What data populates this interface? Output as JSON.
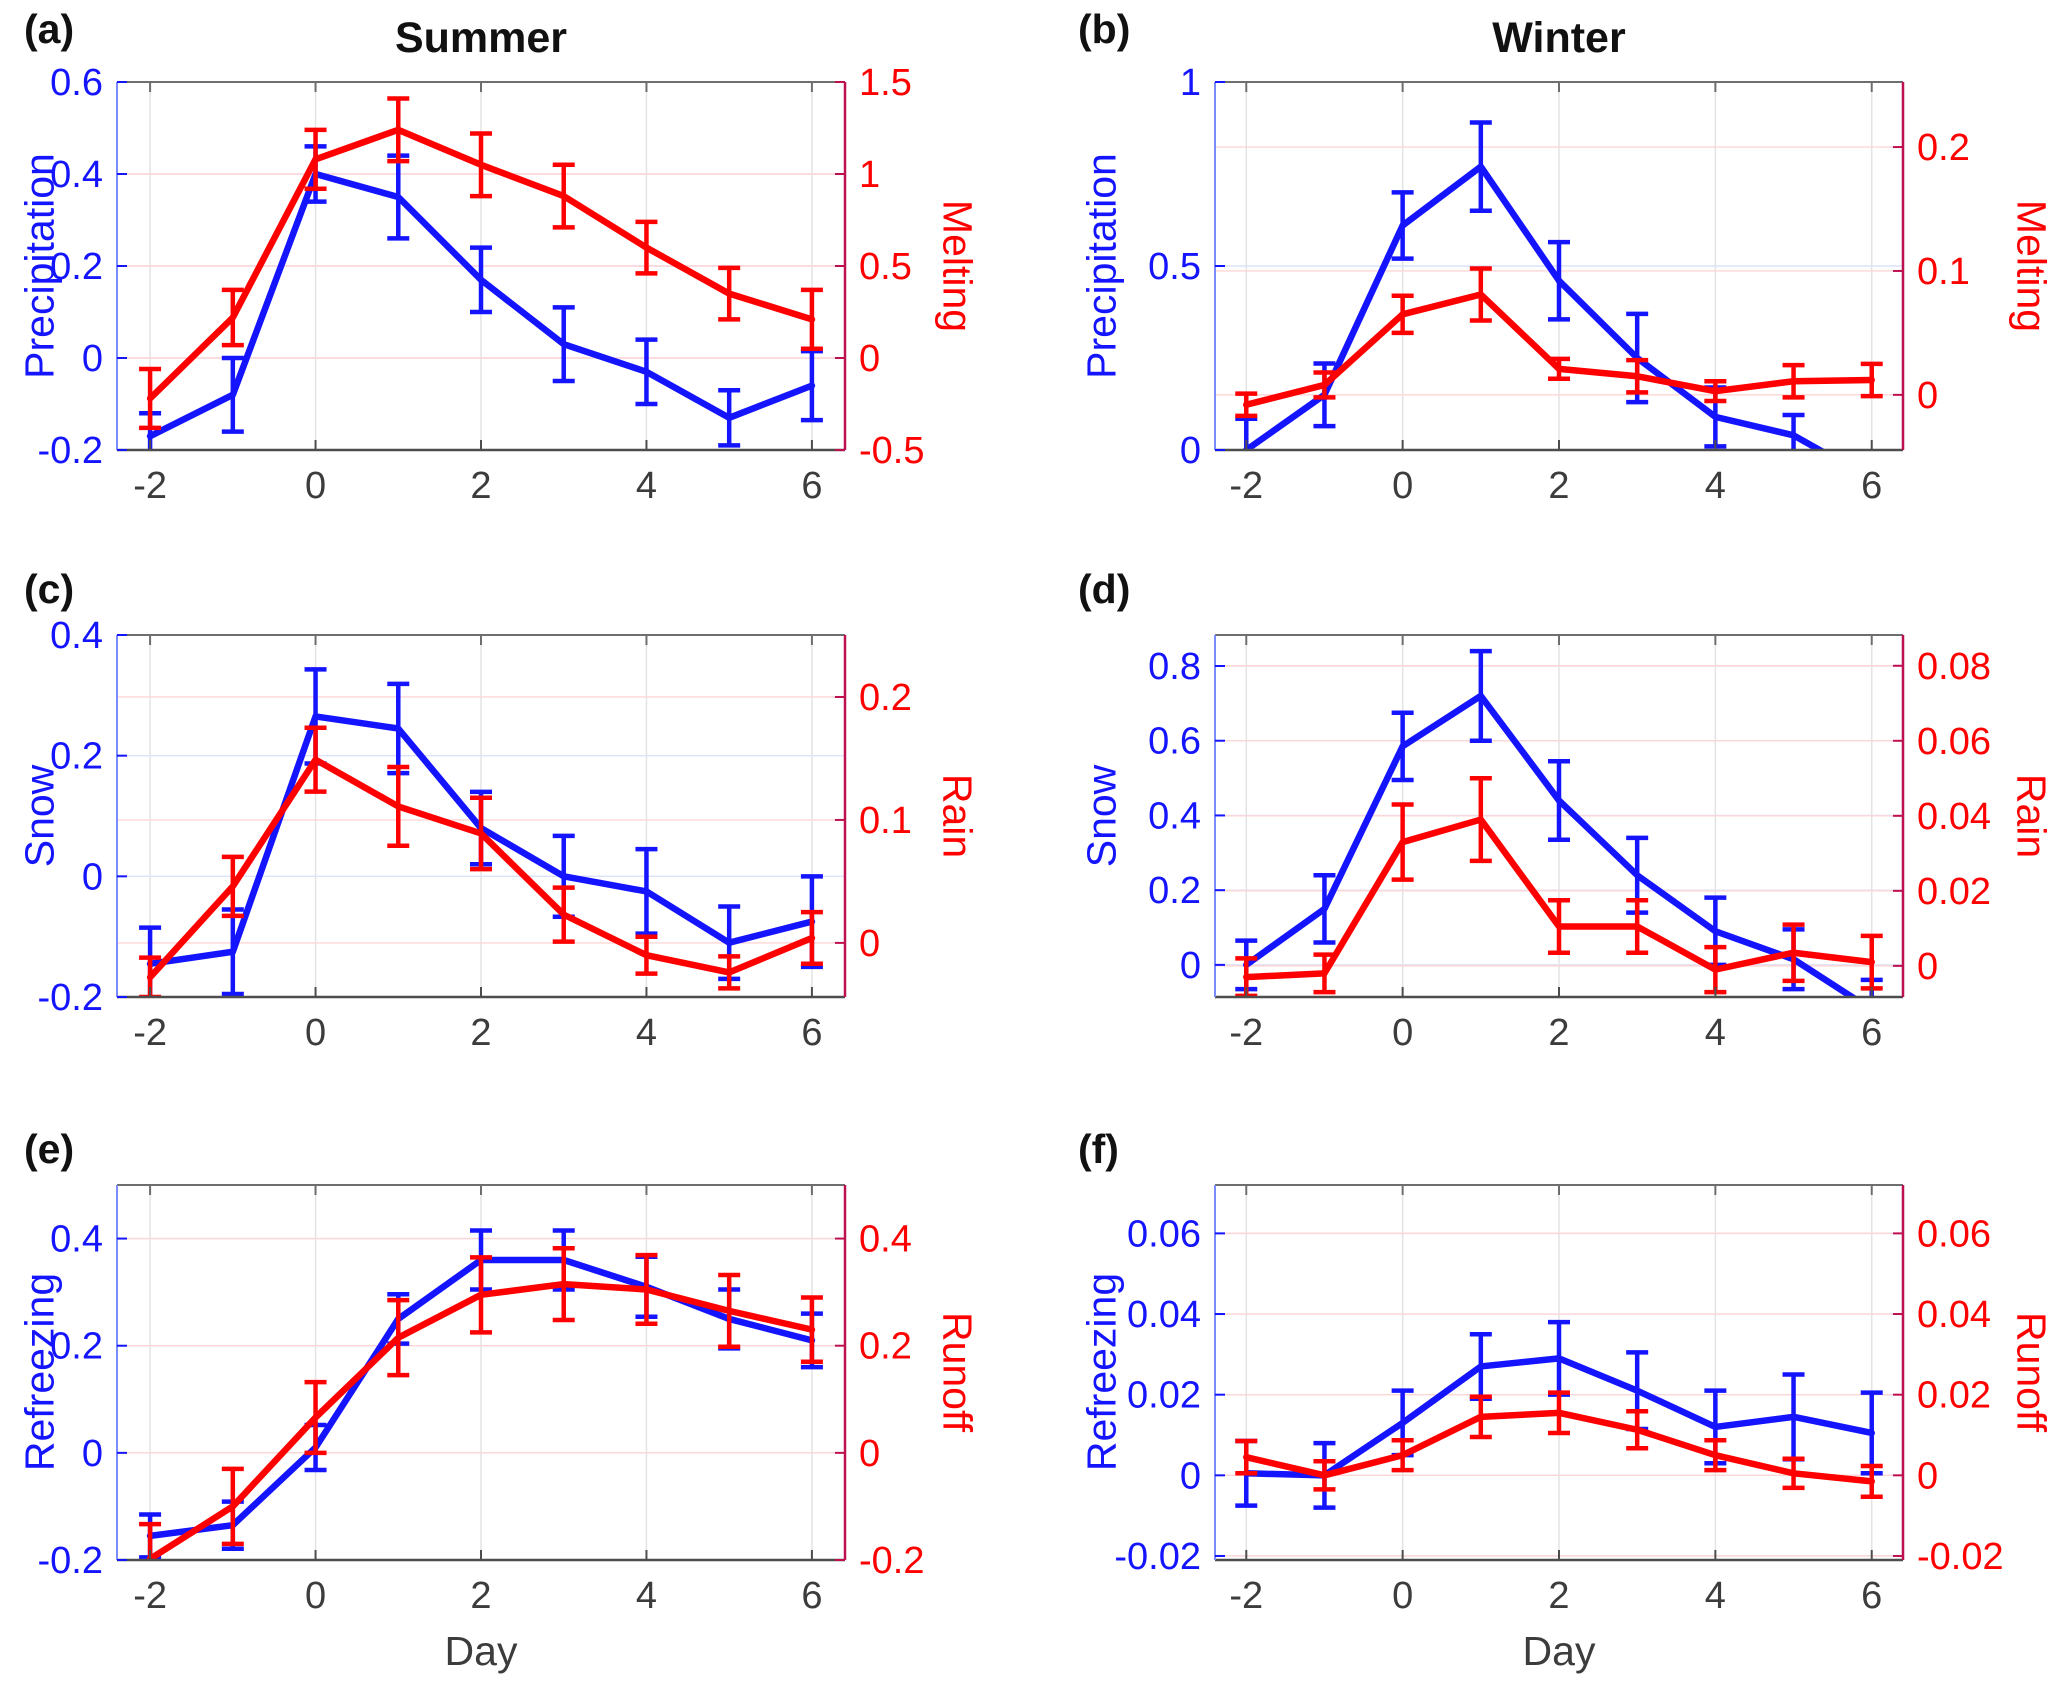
{
  "figure": {
    "xlabel": "Day",
    "x_ticks": [
      -2,
      0,
      2,
      4,
      6
    ],
    "x_tick_labels": [
      "-2",
      "0",
      "2",
      "4",
      "6"
    ],
    "colors": {
      "left_series": "#1414FF",
      "right_series": "#FF0000",
      "left_spine": "#7A8CFF",
      "right_spine": "#BE1050",
      "top_spine": "#6E6E6E",
      "bottom_spine": "#4D4D4D",
      "grid_pink": "#FFD6D6",
      "grid_blue": "#DCE3FA",
      "grid_gray": "#E3E3E3",
      "x_text": "#3C3C3C",
      "title_text": "#111111"
    }
  },
  "chart_data": [
    {
      "type": "line",
      "id": "a",
      "letter": "(a)",
      "title": "Summer",
      "row": 0,
      "col": 0,
      "x": [
        -2,
        -1,
        0,
        1,
        2,
        3,
        4,
        5,
        6
      ],
      "xlim": [
        -2.4,
        6.4
      ],
      "left": {
        "label": "Precipitation",
        "ylim": [
          -0.2,
          0.6
        ],
        "ticks": [
          -0.2,
          0,
          0.2,
          0.4,
          0.6
        ],
        "tick_labels": [
          "-0.2",
          "0",
          "0.2",
          "0.4",
          "0.6"
        ],
        "values": [
          -0.17,
          -0.08,
          0.4,
          0.35,
          0.17,
          0.03,
          -0.03,
          -0.13,
          -0.06
        ],
        "errors": [
          0.05,
          0.08,
          0.06,
          0.09,
          0.07,
          0.08,
          0.07,
          0.06,
          0.075
        ]
      },
      "right": {
        "label": "Melting",
        "ylim": [
          -0.5,
          1.5
        ],
        "ticks": [
          -0.5,
          0,
          0.5,
          1,
          1.5
        ],
        "tick_labels": [
          "-0.5",
          "0",
          "0.5",
          "1",
          "1.5"
        ],
        "values": [
          -0.22,
          0.22,
          1.08,
          1.24,
          1.05,
          0.88,
          0.6,
          0.35,
          0.21
        ],
        "errors": [
          0.16,
          0.15,
          0.16,
          0.17,
          0.17,
          0.17,
          0.14,
          0.14,
          0.16
        ]
      }
    },
    {
      "type": "line",
      "id": "b",
      "letter": "(b)",
      "title": "Winter",
      "row": 0,
      "col": 1,
      "x": [
        -2,
        -1,
        0,
        1,
        2,
        3,
        4,
        5,
        6
      ],
      "xlim": [
        -2.4,
        6.4
      ],
      "left": {
        "label": "Precipitation",
        "ylim": [
          0,
          1
        ],
        "ticks": [
          0,
          0.5,
          1
        ],
        "tick_labels": [
          "0",
          "0.5",
          "1"
        ],
        "values": [
          0.0,
          0.15,
          0.61,
          0.77,
          0.46,
          0.25,
          0.09,
          0.04,
          -0.08
        ],
        "errors": [
          0.085,
          0.085,
          0.09,
          0.12,
          0.105,
          0.12,
          0.08,
          0.055,
          0.05
        ]
      },
      "right": {
        "label": "Melting",
        "ylim": [
          -0.0445,
          0.2525
        ],
        "ticks": [
          0,
          0.1,
          0.2
        ],
        "tick_labels": [
          "0",
          "0.1",
          "0.2"
        ],
        "values": [
          -0.008,
          0.008,
          0.065,
          0.081,
          0.021,
          0.015,
          0.003,
          0.011,
          0.012
        ],
        "errors": [
          0.009,
          0.01,
          0.015,
          0.021,
          0.008,
          0.013,
          0.008,
          0.013,
          0.013
        ]
      }
    },
    {
      "type": "line",
      "id": "c",
      "letter": "(c)",
      "title": "",
      "row": 1,
      "col": 0,
      "x": [
        -2,
        -1,
        0,
        1,
        2,
        3,
        4,
        5,
        6
      ],
      "xlim": [
        -2.4,
        6.4
      ],
      "left": {
        "label": "Snow",
        "ylim": [
          -0.2,
          0.4
        ],
        "ticks": [
          -0.2,
          0,
          0.2,
          0.4
        ],
        "tick_labels": [
          "-0.2",
          "0",
          "0.2",
          "0.4"
        ],
        "values": [
          -0.145,
          -0.125,
          0.265,
          0.245,
          0.08,
          0.0,
          -0.025,
          -0.11,
          -0.075
        ],
        "errors": [
          0.06,
          0.07,
          0.078,
          0.074,
          0.06,
          0.067,
          0.07,
          0.06,
          0.075
        ]
      },
      "right": {
        "label": "Rain",
        "ylim": [
          -0.044,
          0.2504
        ],
        "ticks": [
          0,
          0.1,
          0.2
        ],
        "tick_labels": [
          "0",
          "0.1",
          "0.2"
        ],
        "values": [
          -0.028,
          0.046,
          0.149,
          0.111,
          0.089,
          0.023,
          -0.01,
          -0.024,
          0.004
        ],
        "errors": [
          0.016,
          0.024,
          0.026,
          0.032,
          0.029,
          0.022,
          0.015,
          0.013,
          0.021
        ]
      }
    },
    {
      "type": "line",
      "id": "d",
      "letter": "(d)",
      "title": "",
      "row": 1,
      "col": 1,
      "x": [
        -2,
        -1,
        0,
        1,
        2,
        3,
        4,
        5,
        6
      ],
      "xlim": [
        -2.4,
        6.4
      ],
      "left": {
        "label": "Snow",
        "ylim": [
          -0.086,
          0.883
        ],
        "ticks": [
          0,
          0.2,
          0.4,
          0.6,
          0.8
        ],
        "tick_labels": [
          "0",
          "0.2",
          "0.4",
          "0.6",
          "0.8"
        ],
        "values": [
          0.0,
          0.15,
          0.585,
          0.72,
          0.44,
          0.24,
          0.09,
          0.015,
          -0.12
        ],
        "errors": [
          0.065,
          0.09,
          0.09,
          0.12,
          0.105,
          0.1,
          0.09,
          0.08,
          0.08
        ]
      },
      "right": {
        "label": "Rain",
        "ylim": [
          -0.0083,
          0.0882
        ],
        "ticks": [
          0,
          0.02,
          0.04,
          0.06,
          0.08
        ],
        "tick_labels": [
          "0",
          "0.02",
          "0.04",
          "0.06",
          "0.08"
        ],
        "values": [
          -0.003,
          -0.002,
          0.033,
          0.039,
          0.0105,
          0.0105,
          -0.001,
          0.0035,
          0.001
        ],
        "errors": [
          0.005,
          0.005,
          0.01,
          0.011,
          0.007,
          0.007,
          0.006,
          0.0075,
          0.007
        ]
      }
    },
    {
      "type": "line",
      "id": "e",
      "letter": "(e)",
      "title": "",
      "row": 2,
      "col": 0,
      "xlabel": "Day",
      "x": [
        -2,
        -1,
        0,
        1,
        2,
        3,
        4,
        5,
        6
      ],
      "xlim": [
        -2.4,
        6.4
      ],
      "left": {
        "label": "Refreezing",
        "ylim": [
          -0.2,
          0.5
        ],
        "ticks": [
          -0.2,
          0,
          0.2,
          0.4
        ],
        "tick_labels": [
          "-0.2",
          "0",
          "0.2",
          "0.4"
        ],
        "values": [
          -0.155,
          -0.135,
          0.01,
          0.25,
          0.36,
          0.36,
          0.31,
          0.25,
          0.21
        ],
        "errors": [
          0.04,
          0.044,
          0.042,
          0.046,
          0.055,
          0.055,
          0.056,
          0.055,
          0.05
        ]
      },
      "right": {
        "label": "Runoff",
        "ylim": [
          -0.2,
          0.5
        ],
        "ticks": [
          -0.2,
          0,
          0.2,
          0.4
        ],
        "tick_labels": [
          "-0.2",
          "0",
          "0.2",
          "0.4"
        ],
        "values": [
          -0.198,
          -0.1,
          0.066,
          0.215,
          0.295,
          0.315,
          0.305,
          0.265,
          0.23
        ],
        "errors": [
          0.065,
          0.07,
          0.066,
          0.07,
          0.07,
          0.067,
          0.064,
          0.067,
          0.06
        ]
      }
    },
    {
      "type": "line",
      "id": "f",
      "letter": "(f)",
      "title": "",
      "row": 2,
      "col": 1,
      "xlabel": "Day",
      "x": [
        -2,
        -1,
        0,
        1,
        2,
        3,
        4,
        5,
        6
      ],
      "xlim": [
        -2.4,
        6.4
      ],
      "left": {
        "label": "Refreezing",
        "ylim": [
          -0.021,
          0.072
        ],
        "ticks": [
          -0.02,
          0,
          0.02,
          0.04,
          0.06
        ],
        "tick_labels": [
          "-0.02",
          "0",
          "0.02",
          "0.04",
          "0.06"
        ],
        "values": [
          0.0005,
          0.0,
          0.013,
          0.027,
          0.029,
          0.021,
          0.012,
          0.0145,
          0.0105
        ],
        "errors": [
          0.008,
          0.008,
          0.008,
          0.008,
          0.009,
          0.0095,
          0.009,
          0.0105,
          0.01
        ]
      },
      "right": {
        "label": "Runoff",
        "ylim": [
          -0.021,
          0.072
        ],
        "ticks": [
          -0.02,
          0,
          0.02,
          0.04,
          0.06
        ],
        "tick_labels": [
          "-0.02",
          "0",
          "0.02",
          "0.04",
          "0.06"
        ],
        "values": [
          0.0045,
          0.0,
          0.005,
          0.0145,
          0.0155,
          0.0113,
          0.005,
          0.0005,
          -0.0015
        ],
        "errors": [
          0.004,
          0.0035,
          0.0037,
          0.005,
          0.005,
          0.0046,
          0.0037,
          0.0036,
          0.0038
        ]
      }
    }
  ]
}
